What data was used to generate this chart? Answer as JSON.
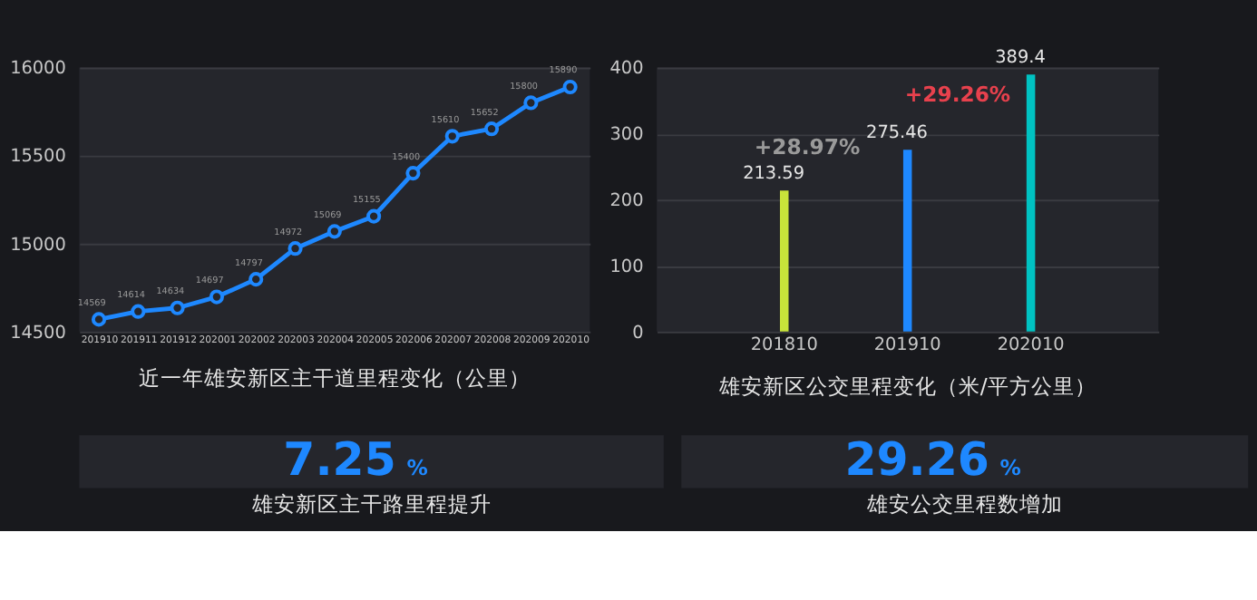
{
  "chart_data": [
    {
      "type": "line",
      "title": "近一年雄安新区主干道里程变化（公里）",
      "categories": [
        "201910",
        "201911",
        "201912",
        "202001",
        "202002",
        "202003",
        "202004",
        "202005",
        "202006",
        "202007",
        "202008",
        "202009",
        "202010"
      ],
      "series": [
        {
          "color": "#1e88ff",
          "values": [
            14569,
            14614,
            14634,
            14697,
            14797,
            14972,
            15069,
            15155,
            15400,
            15610,
            15652,
            15800,
            15890
          ]
        }
      ],
      "ylim": [
        14500,
        16000
      ],
      "yticks": [
        14500,
        15000,
        15500,
        16000
      ],
      "grid": "y",
      "marker": "circle",
      "line_style": "solid",
      "data_labels": true
    },
    {
      "type": "bar",
      "title": "雄安新区公交里程变化（米/平方公里）",
      "categories": [
        "201810",
        "201910",
        "202010"
      ],
      "values": [
        213.59,
        275.46,
        389.4
      ],
      "colors": [
        "#c8e43a",
        "#1e88ff",
        "#00c2c2"
      ],
      "ylim": [
        0,
        400
      ],
      "yticks": [
        0,
        100,
        200,
        300,
        400
      ],
      "grid": "y",
      "data_labels": true,
      "annotations": [
        "+28.97%",
        "+29.26%"
      ]
    },
    {
      "type": "other",
      "title": "雄安新区主干路里程提升",
      "annotations": [
        "7.25",
        "%"
      ]
    },
    {
      "type": "other",
      "title": "雄安公交里程数增加",
      "annotations": [
        "29.26",
        "%"
      ]
    }
  ]
}
